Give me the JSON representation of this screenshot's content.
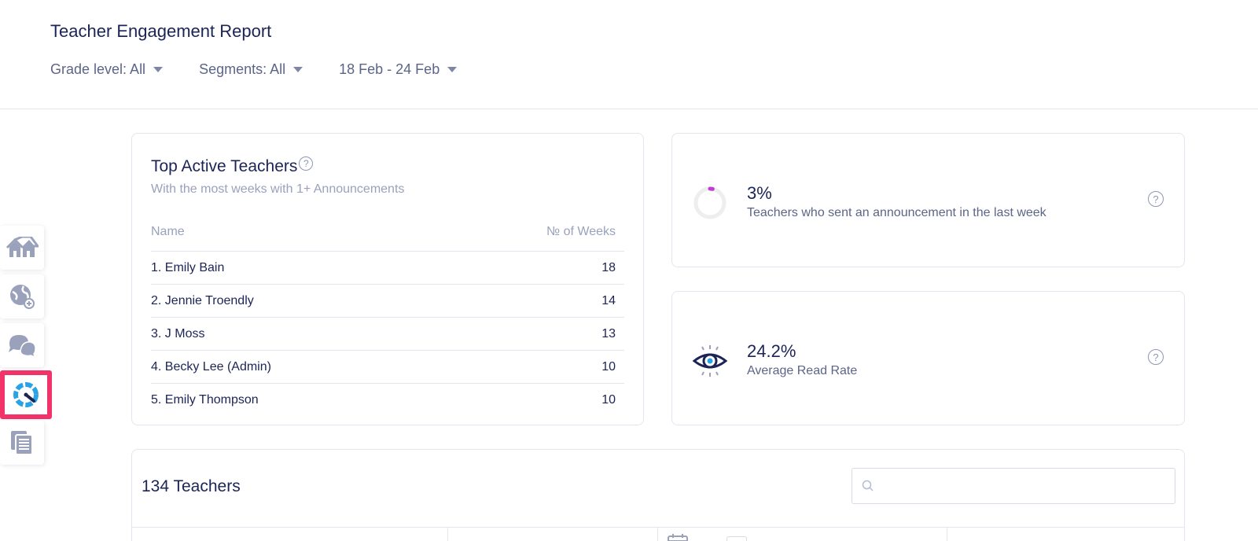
{
  "header": {
    "title": "Teacher Engagement Report",
    "filters": {
      "grade": "Grade level: All",
      "segments": "Segments: All",
      "date_range": "18 Feb - 24 Feb"
    }
  },
  "sidebar": {
    "items": [
      {
        "icon": "home-icon"
      },
      {
        "icon": "globe-icon"
      },
      {
        "icon": "chat-icon"
      },
      {
        "icon": "gauge-icon",
        "active": true
      },
      {
        "icon": "documents-icon"
      }
    ],
    "active_color": "#f2336a"
  },
  "top_teachers": {
    "title": "Top Active Teachers",
    "subtitle": "With the most weeks with 1+ Announcements",
    "col_name": "Name",
    "col_weeks": "№ of Weeks",
    "rows": [
      {
        "name": "1. Emily Bain",
        "weeks": "18"
      },
      {
        "name": "2. Jennie Troendly",
        "weeks": "14"
      },
      {
        "name": "3. J Moss",
        "weeks": "13"
      },
      {
        "name": "4. Becky Lee (Admin)",
        "weeks": "10"
      },
      {
        "name": "5. Emily Thompson",
        "weeks": "10"
      }
    ]
  },
  "stats": {
    "announcement": {
      "value": "3%",
      "label": "Teachers who sent an announcement in the last week",
      "progress": 0.03,
      "progress_color": "#c13dd1"
    },
    "read_rate": {
      "value": "24.2%",
      "label": "Average Read Rate"
    }
  },
  "teachers": {
    "count_label": "134 Teachers",
    "search_placeholder": ""
  },
  "help_glyph": "?"
}
